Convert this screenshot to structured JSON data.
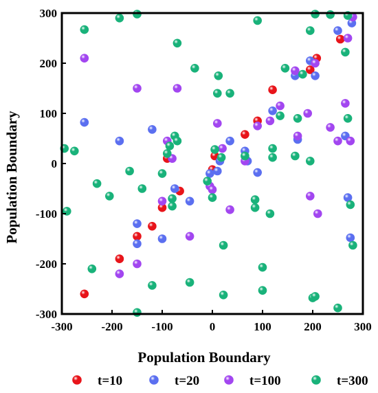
{
  "chart_data": {
    "type": "scatter",
    "title": "",
    "xlabel": "Population Boundary",
    "ylabel": "Population Boundary",
    "xlim": [
      -300,
      300
    ],
    "ylim": [
      -300,
      300
    ],
    "xticks": [
      "-300",
      "-200",
      "-100",
      "0",
      "100",
      "200",
      "300"
    ],
    "yticks": [
      "-300",
      "-200",
      "-100",
      "0",
      "100",
      "200",
      "300"
    ],
    "grid": false,
    "legend_position": "bottom",
    "series": [
      {
        "name": "t=10",
        "color": "#e8141a",
        "points": [
          [
            -255,
            -260
          ],
          [
            -185,
            -190
          ],
          [
            -150,
            -145
          ],
          [
            -120,
            -125
          ],
          [
            -100,
            -88
          ],
          [
            -90,
            10
          ],
          [
            -65,
            -55
          ],
          [
            0,
            -12
          ],
          [
            5,
            15
          ],
          [
            65,
            58
          ],
          [
            90,
            85
          ],
          [
            120,
            147
          ],
          [
            195,
            187
          ],
          [
            208,
            210
          ],
          [
            255,
            248
          ]
        ]
      },
      {
        "name": "t=20",
        "color": "#5b6ff0",
        "points": [
          [
            -255,
            82
          ],
          [
            -185,
            45
          ],
          [
            -150,
            -120
          ],
          [
            -150,
            -160
          ],
          [
            -120,
            68
          ],
          [
            -100,
            -150
          ],
          [
            -75,
            -50
          ],
          [
            -45,
            -75
          ],
          [
            -5,
            -20
          ],
          [
            10,
            -15
          ],
          [
            15,
            5
          ],
          [
            35,
            45
          ],
          [
            65,
            25
          ],
          [
            70,
            5
          ],
          [
            90,
            -18
          ],
          [
            120,
            105
          ],
          [
            165,
            175
          ],
          [
            170,
            48
          ],
          [
            195,
            205
          ],
          [
            205,
            175
          ],
          [
            250,
            265
          ],
          [
            265,
            55
          ],
          [
            270,
            -68
          ],
          [
            275,
            -148
          ],
          [
            278,
            280
          ]
        ]
      },
      {
        "name": "t=100",
        "color": "#a246f0",
        "points": [
          [
            -255,
            210
          ],
          [
            -185,
            -220
          ],
          [
            -150,
            150
          ],
          [
            -150,
            -200
          ],
          [
            -100,
            -75
          ],
          [
            -90,
            45
          ],
          [
            -70,
            150
          ],
          [
            -80,
            10
          ],
          [
            -45,
            -145
          ],
          [
            -5,
            -45
          ],
          [
            0,
            -52
          ],
          [
            10,
            80
          ],
          [
            20,
            30
          ],
          [
            35,
            -92
          ],
          [
            65,
            5
          ],
          [
            90,
            75
          ],
          [
            115,
            85
          ],
          [
            135,
            115
          ],
          [
            165,
            185
          ],
          [
            170,
            55
          ],
          [
            190,
            100
          ],
          [
            195,
            -65
          ],
          [
            205,
            200
          ],
          [
            210,
            -100
          ],
          [
            235,
            72
          ],
          [
            250,
            45
          ],
          [
            265,
            120
          ],
          [
            270,
            250
          ],
          [
            275,
            45
          ],
          [
            280,
            292
          ]
        ]
      },
      {
        "name": "t=300",
        "color": "#19b27a",
        "points": [
          [
            -295,
            30
          ],
          [
            -290,
            -95
          ],
          [
            -275,
            25
          ],
          [
            -255,
            267
          ],
          [
            -240,
            -210
          ],
          [
            -230,
            -40
          ],
          [
            -205,
            -65
          ],
          [
            -185,
            290
          ],
          [
            -165,
            -15
          ],
          [
            -150,
            298
          ],
          [
            -150,
            -297
          ],
          [
            -140,
            -50
          ],
          [
            -120,
            -243
          ],
          [
            -100,
            -20
          ],
          [
            -90,
            20
          ],
          [
            -85,
            35
          ],
          [
            -80,
            -70
          ],
          [
            -80,
            -85
          ],
          [
            -75,
            55
          ],
          [
            -70,
            45
          ],
          [
            -70,
            240
          ],
          [
            -45,
            -237
          ],
          [
            -35,
            190
          ],
          [
            -10,
            -35
          ],
          [
            0,
            -68
          ],
          [
            5,
            28
          ],
          [
            10,
            140
          ],
          [
            12,
            175
          ],
          [
            18,
            12
          ],
          [
            22,
            -163
          ],
          [
            22,
            -262
          ],
          [
            35,
            140
          ],
          [
            65,
            15
          ],
          [
            85,
            -72
          ],
          [
            85,
            -88
          ],
          [
            90,
            285
          ],
          [
            100,
            -207
          ],
          [
            100,
            -253
          ],
          [
            115,
            -100
          ],
          [
            120,
            30
          ],
          [
            120,
            12
          ],
          [
            135,
            95
          ],
          [
            145,
            190
          ],
          [
            165,
            15
          ],
          [
            170,
            90
          ],
          [
            180,
            178
          ],
          [
            195,
            265
          ],
          [
            195,
            5
          ],
          [
            200,
            -268
          ],
          [
            205,
            -265
          ],
          [
            205,
            298
          ],
          [
            235,
            297
          ],
          [
            250,
            -288
          ],
          [
            265,
            222
          ],
          [
            270,
            295
          ],
          [
            270,
            90
          ],
          [
            275,
            -82
          ],
          [
            280,
            -163
          ]
        ]
      }
    ]
  }
}
